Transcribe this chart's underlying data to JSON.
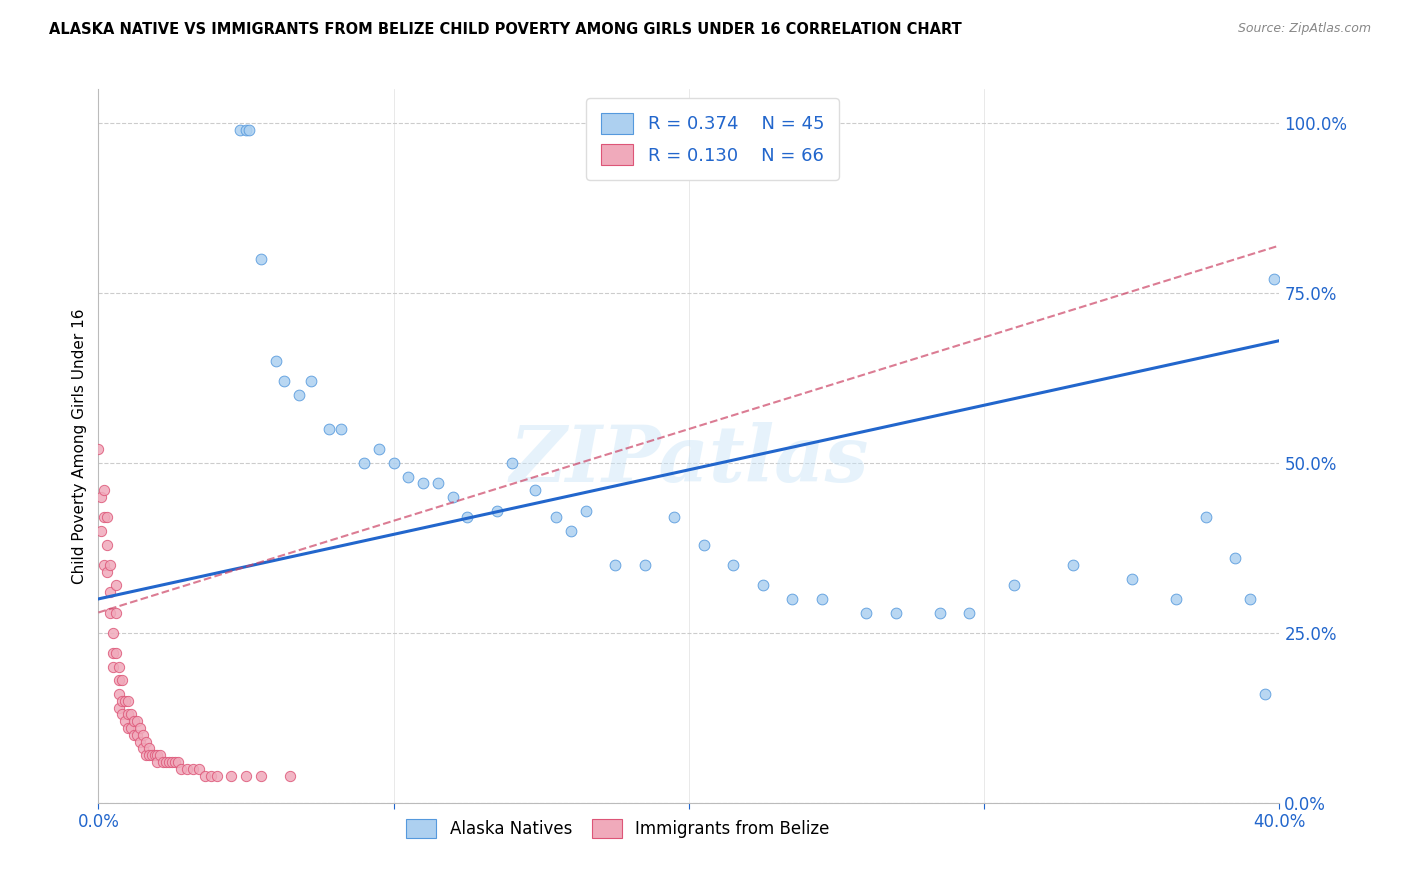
{
  "title": "ALASKA NATIVE VS IMMIGRANTS FROM BELIZE CHILD POVERTY AMONG GIRLS UNDER 16 CORRELATION CHART",
  "source": "Source: ZipAtlas.com",
  "ylabel": "Child Poverty Among Girls Under 16",
  "ytick_vals": [
    0.0,
    0.25,
    0.5,
    0.75,
    1.0
  ],
  "alaska_R": 0.374,
  "alaska_N": 45,
  "belize_R": 0.13,
  "belize_N": 66,
  "alaska_color": "#add0f0",
  "alaska_edge_color": "#5599dd",
  "belize_color": "#f0aabb",
  "belize_edge_color": "#dd5577",
  "alaska_line_color": "#2266cc",
  "belize_line_color": "#cc4466",
  "watermark": "ZIPatlas",
  "alaska_x": [
    0.048,
    0.05,
    0.051,
    0.055,
    0.06,
    0.063,
    0.068,
    0.072,
    0.078,
    0.082,
    0.09,
    0.095,
    0.1,
    0.105,
    0.11,
    0.115,
    0.12,
    0.125,
    0.135,
    0.14,
    0.148,
    0.155,
    0.16,
    0.165,
    0.175,
    0.185,
    0.195,
    0.205,
    0.215,
    0.225,
    0.235,
    0.245,
    0.26,
    0.27,
    0.285,
    0.295,
    0.31,
    0.33,
    0.35,
    0.365,
    0.375,
    0.385,
    0.39,
    0.395,
    0.398
  ],
  "alaska_y": [
    0.99,
    0.99,
    0.99,
    0.8,
    0.65,
    0.62,
    0.6,
    0.62,
    0.55,
    0.55,
    0.5,
    0.52,
    0.5,
    0.48,
    0.47,
    0.47,
    0.45,
    0.42,
    0.43,
    0.5,
    0.46,
    0.42,
    0.4,
    0.43,
    0.35,
    0.35,
    0.42,
    0.38,
    0.35,
    0.32,
    0.3,
    0.3,
    0.28,
    0.28,
    0.28,
    0.28,
    0.32,
    0.35,
    0.33,
    0.3,
    0.42,
    0.36,
    0.3,
    0.16,
    0.77
  ],
  "belize_x": [
    0.0,
    0.001,
    0.001,
    0.002,
    0.002,
    0.002,
    0.003,
    0.003,
    0.003,
    0.004,
    0.004,
    0.004,
    0.005,
    0.005,
    0.005,
    0.006,
    0.006,
    0.006,
    0.007,
    0.007,
    0.007,
    0.007,
    0.008,
    0.008,
    0.008,
    0.009,
    0.009,
    0.01,
    0.01,
    0.01,
    0.011,
    0.011,
    0.012,
    0.012,
    0.013,
    0.013,
    0.014,
    0.014,
    0.015,
    0.015,
    0.016,
    0.016,
    0.017,
    0.017,
    0.018,
    0.019,
    0.02,
    0.02,
    0.021,
    0.022,
    0.023,
    0.024,
    0.025,
    0.026,
    0.027,
    0.028,
    0.03,
    0.032,
    0.034,
    0.036,
    0.038,
    0.04,
    0.045,
    0.05,
    0.055,
    0.065
  ],
  "belize_y": [
    0.52,
    0.45,
    0.4,
    0.46,
    0.42,
    0.35,
    0.42,
    0.38,
    0.34,
    0.35,
    0.31,
    0.28,
    0.25,
    0.22,
    0.2,
    0.32,
    0.28,
    0.22,
    0.2,
    0.18,
    0.16,
    0.14,
    0.18,
    0.15,
    0.13,
    0.15,
    0.12,
    0.15,
    0.13,
    0.11,
    0.13,
    0.11,
    0.12,
    0.1,
    0.12,
    0.1,
    0.11,
    0.09,
    0.1,
    0.08,
    0.09,
    0.07,
    0.08,
    0.07,
    0.07,
    0.07,
    0.07,
    0.06,
    0.07,
    0.06,
    0.06,
    0.06,
    0.06,
    0.06,
    0.06,
    0.05,
    0.05,
    0.05,
    0.05,
    0.04,
    0.04,
    0.04,
    0.04,
    0.04,
    0.04,
    0.04
  ]
}
